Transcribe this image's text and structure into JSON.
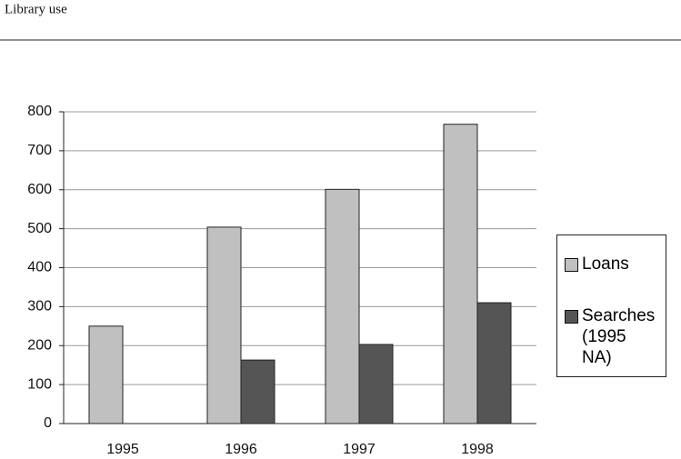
{
  "chart_data": {
    "type": "bar",
    "title": "Library use",
    "categories": [
      "1995",
      "1996",
      "1997",
      "1998"
    ],
    "series": [
      {
        "name": "Loans",
        "color": "#c0c0c0",
        "values": [
          250,
          504,
          601,
          768
        ]
      },
      {
        "name": "Searches (1995 NA)",
        "color": "#555555",
        "values": [
          null,
          163,
          203,
          310
        ]
      }
    ],
    "ylim": [
      0,
      800
    ],
    "yticks": [
      0,
      100,
      200,
      300,
      400,
      500,
      600,
      700,
      800
    ],
    "grid": true,
    "legend": "right"
  }
}
